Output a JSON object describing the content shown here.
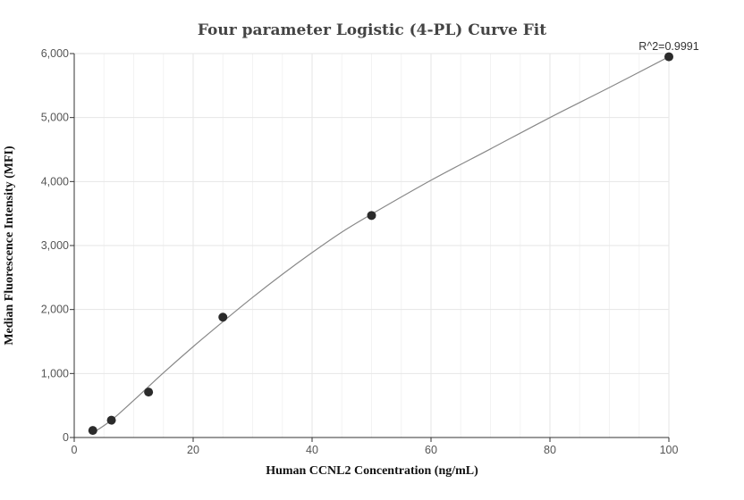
{
  "chart_data": {
    "type": "scatter",
    "title": "Four parameter Logistic (4-PL) Curve Fit",
    "xlabel": "Human CCNL2 Concentration (ng/mL)",
    "ylabel": "Median Fluorescence Intensity (MFI)",
    "xlim": [
      0,
      100
    ],
    "ylim": [
      0,
      6000
    ],
    "x_ticks": [
      0,
      20,
      40,
      60,
      80,
      100
    ],
    "y_ticks": [
      0,
      1000,
      2000,
      3000,
      4000,
      5000,
      6000
    ],
    "x_tick_labels": [
      "0",
      "20",
      "40",
      "60",
      "80",
      "100"
    ],
    "y_tick_labels": [
      "0",
      "1,000",
      "2,000",
      "3,000",
      "4,000",
      "5,000",
      "6,000"
    ],
    "grid": true,
    "annotation": "R^2=0.9991",
    "points": {
      "x": [
        3.125,
        6.25,
        12.5,
        25,
        50,
        100
      ],
      "y": [
        110,
        270,
        710,
        1880,
        3470,
        5950
      ]
    },
    "fit_curve": {
      "x": [
        3.125,
        6.25,
        10,
        15,
        20,
        25,
        30,
        35,
        40,
        45,
        50,
        60,
        70,
        80,
        90,
        100
      ],
      "y": [
        70,
        270,
        580,
        1010,
        1420,
        1810,
        2190,
        2550,
        2890,
        3210,
        3490,
        4020,
        4510,
        5000,
        5470,
        5950
      ]
    },
    "colors": {
      "points": "#2b2b2b",
      "curve": "#888888",
      "grid": "#e6e6e6"
    }
  }
}
